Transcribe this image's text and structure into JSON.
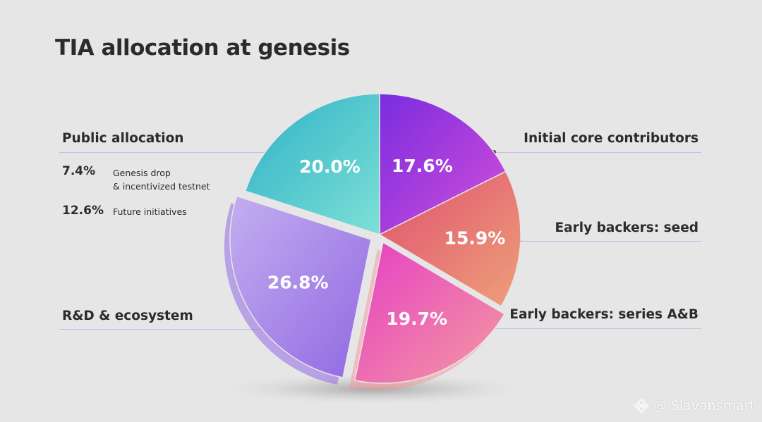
{
  "title": "TIA allocation at genesis",
  "chart_data": {
    "type": "pie",
    "title": "TIA allocation at genesis",
    "slices": [
      {
        "name": "Initial core contributors",
        "value": 17.6,
        "label": "17.6%",
        "color_from": "#7a2ce0",
        "color_to": "#d24fd9"
      },
      {
        "name": "Early backers: seed",
        "value": 15.9,
        "label": "15.9%",
        "color_from": "#e0506f",
        "color_to": "#eea07a"
      },
      {
        "name": "Early backers: series A&B",
        "value": 19.7,
        "label": "19.7%",
        "color_from": "#e63fc4",
        "color_to": "#f49aa0"
      },
      {
        "name": "R&D & ecosystem",
        "value": 26.8,
        "label": "26.8%",
        "color_from": "#c3aef0",
        "color_to": "#9168e2"
      },
      {
        "name": "Public allocation",
        "value": 20.0,
        "label": "20.0%",
        "color_from": "#2fb1c6",
        "color_to": "#7de0d6"
      }
    ],
    "public_breakdown": [
      {
        "pct": "7.4%",
        "desc_line1": "Genesis drop",
        "desc_line2": "& incentivized testnet"
      },
      {
        "pct": "12.6%",
        "desc_line1": "Future initiatives",
        "desc_line2": ""
      }
    ]
  },
  "watermark": {
    "text": "@ Slavansmart",
    "icon": "binance-diamond-icon"
  }
}
